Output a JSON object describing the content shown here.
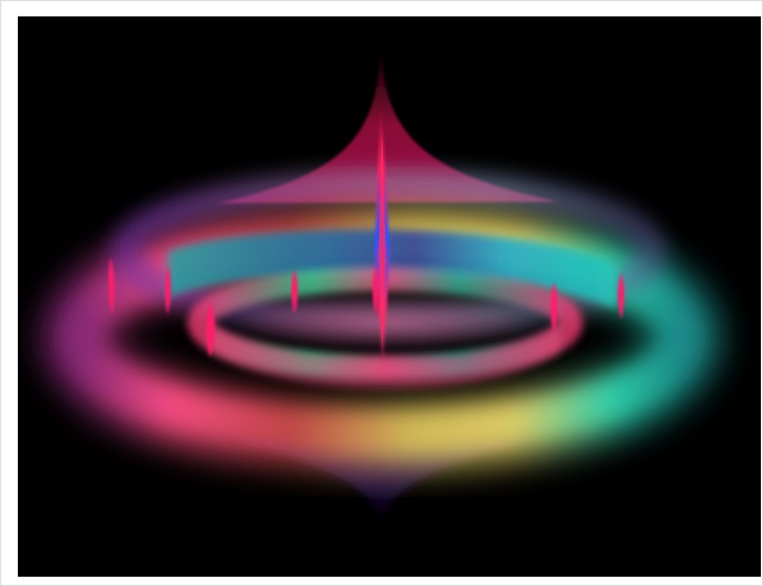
{
  "image": {
    "subject": "",
    "colors": {
      "background": "#000000",
      "frame": "#ffffff",
      "magenta": "#ff1f6a",
      "pink": "#ff6fa6",
      "cyan": "#19c8c8",
      "teal": "#1fa6a0",
      "blue": "#2b54ff",
      "green": "#3fe0a0",
      "yellow": "#e6d46a",
      "purple": "#6b2fa3",
      "crimson": "#a0103f"
    }
  }
}
